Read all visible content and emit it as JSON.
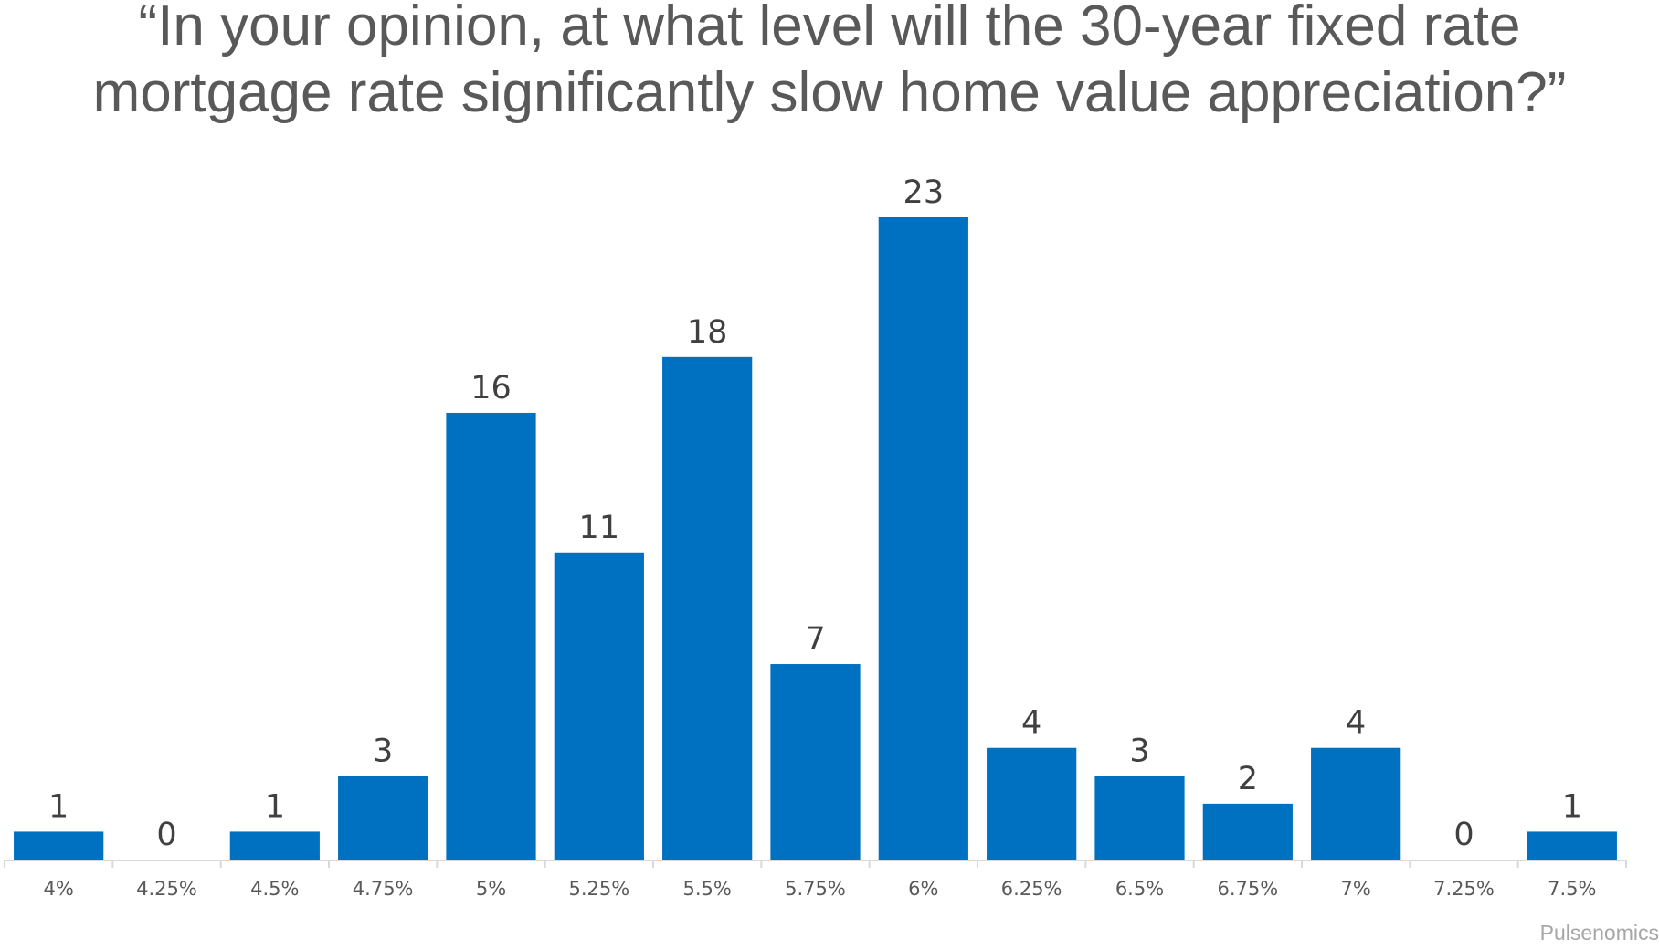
{
  "chart_data": {
    "type": "bar",
    "title_lines": [
      "“In your opinion, at what level will the 30-year fixed rate",
      "mortgage rate significantly slow home value appreciation?”"
    ],
    "categories": [
      "4%",
      "4.25%",
      "4.5%",
      "4.75%",
      "5%",
      "5.25%",
      "5.5%",
      "5.75%",
      "6%",
      "6.25%",
      "6.5%",
      "6.75%",
      "7%",
      "7.25%",
      "7.5%"
    ],
    "values": [
      1,
      0,
      1,
      3,
      16,
      11,
      18,
      7,
      23,
      4,
      3,
      2,
      4,
      0,
      1
    ],
    "xlabel": "",
    "ylabel": "",
    "ylim": [
      0,
      23
    ],
    "grid": false,
    "data_labels": true,
    "bar_color": "#0070c0",
    "axis_color": "#d9d9d9"
  },
  "source": "Pulsenomics"
}
